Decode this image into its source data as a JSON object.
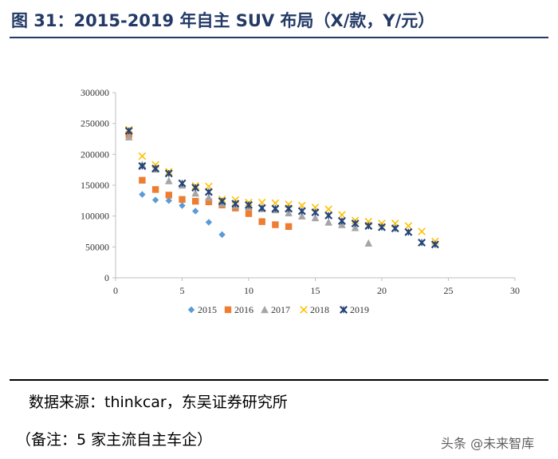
{
  "title": "图 31：2015-2019 年自主 SUV 布局（X/款，Y/元）",
  "source": "数据来源：thinkcar，东吴证券研究所",
  "note": "（备注：5 家主流自主车企）",
  "watermark": "头条 @未来智库",
  "chart_data": {
    "type": "scatter",
    "xlim": [
      0,
      30
    ],
    "ylim": [
      0,
      300000
    ],
    "x_ticks": [
      0,
      5,
      10,
      15,
      20,
      25,
      30
    ],
    "y_ticks": [
      0,
      50000,
      100000,
      150000,
      200000,
      250000,
      300000
    ],
    "grid": false,
    "legend_position": "bottom",
    "series": [
      {
        "name": "2015",
        "color": "#5b9bd5",
        "marker": "diamond",
        "points": [
          [
            1,
            230000
          ],
          [
            2,
            135000
          ],
          [
            3,
            126000
          ],
          [
            4,
            125000
          ],
          [
            5,
            117000
          ],
          [
            6,
            108000
          ],
          [
            7,
            90000
          ],
          [
            8,
            70000
          ]
        ]
      },
      {
        "name": "2016",
        "color": "#ed7d31",
        "marker": "square",
        "points": [
          [
            1,
            232000
          ],
          [
            2,
            158000
          ],
          [
            3,
            143000
          ],
          [
            4,
            134000
          ],
          [
            5,
            127000
          ],
          [
            6,
            124000
          ],
          [
            7,
            123000
          ],
          [
            8,
            118000
          ],
          [
            9,
            113000
          ],
          [
            10,
            104000
          ],
          [
            11,
            91000
          ],
          [
            12,
            86000
          ],
          [
            13,
            83000
          ]
        ]
      },
      {
        "name": "2017",
        "color": "#a5a5a5",
        "marker": "triangle",
        "points": [
          [
            1,
            228000
          ],
          [
            2,
            183000
          ],
          [
            3,
            176000
          ],
          [
            4,
            157000
          ],
          [
            5,
            150000
          ],
          [
            6,
            137000
          ],
          [
            7,
            130000
          ],
          [
            8,
            120000
          ],
          [
            9,
            117000
          ],
          [
            10,
            115000
          ],
          [
            11,
            112000
          ],
          [
            12,
            110000
          ],
          [
            13,
            105000
          ],
          [
            14,
            100000
          ],
          [
            15,
            97000
          ],
          [
            16,
            90000
          ],
          [
            17,
            86000
          ],
          [
            18,
            81000
          ],
          [
            19,
            56000
          ]
        ]
      },
      {
        "name": "2018",
        "color": "#ffc000",
        "marker": "x",
        "points": [
          [
            1,
            240000
          ],
          [
            2,
            197000
          ],
          [
            3,
            183000
          ],
          [
            4,
            172000
          ],
          [
            5,
            153000
          ],
          [
            6,
            149000
          ],
          [
            7,
            148000
          ],
          [
            8,
            127000
          ],
          [
            9,
            126000
          ],
          [
            10,
            122000
          ],
          [
            11,
            122000
          ],
          [
            12,
            121000
          ],
          [
            13,
            119000
          ],
          [
            14,
            117000
          ],
          [
            15,
            114000
          ],
          [
            16,
            111000
          ],
          [
            17,
            102000
          ],
          [
            18,
            93000
          ],
          [
            19,
            91000
          ],
          [
            20,
            88000
          ],
          [
            21,
            88000
          ],
          [
            22,
            84000
          ],
          [
            23,
            75000
          ],
          [
            24,
            59000
          ]
        ]
      },
      {
        "name": "2019",
        "color": "#264478",
        "marker": "star",
        "points": [
          [
            1,
            238000
          ],
          [
            2,
            181000
          ],
          [
            3,
            177000
          ],
          [
            4,
            169000
          ],
          [
            5,
            153000
          ],
          [
            6,
            146000
          ],
          [
            7,
            139000
          ],
          [
            8,
            124000
          ],
          [
            9,
            120000
          ],
          [
            10,
            118000
          ],
          [
            11,
            113000
          ],
          [
            12,
            112000
          ],
          [
            13,
            112000
          ],
          [
            14,
            108000
          ],
          [
            15,
            106000
          ],
          [
            16,
            101000
          ],
          [
            17,
            92000
          ],
          [
            18,
            88000
          ],
          [
            19,
            84000
          ],
          [
            20,
            82000
          ],
          [
            21,
            80000
          ],
          [
            22,
            74000
          ],
          [
            23,
            57000
          ],
          [
            24,
            54000
          ]
        ]
      }
    ]
  }
}
